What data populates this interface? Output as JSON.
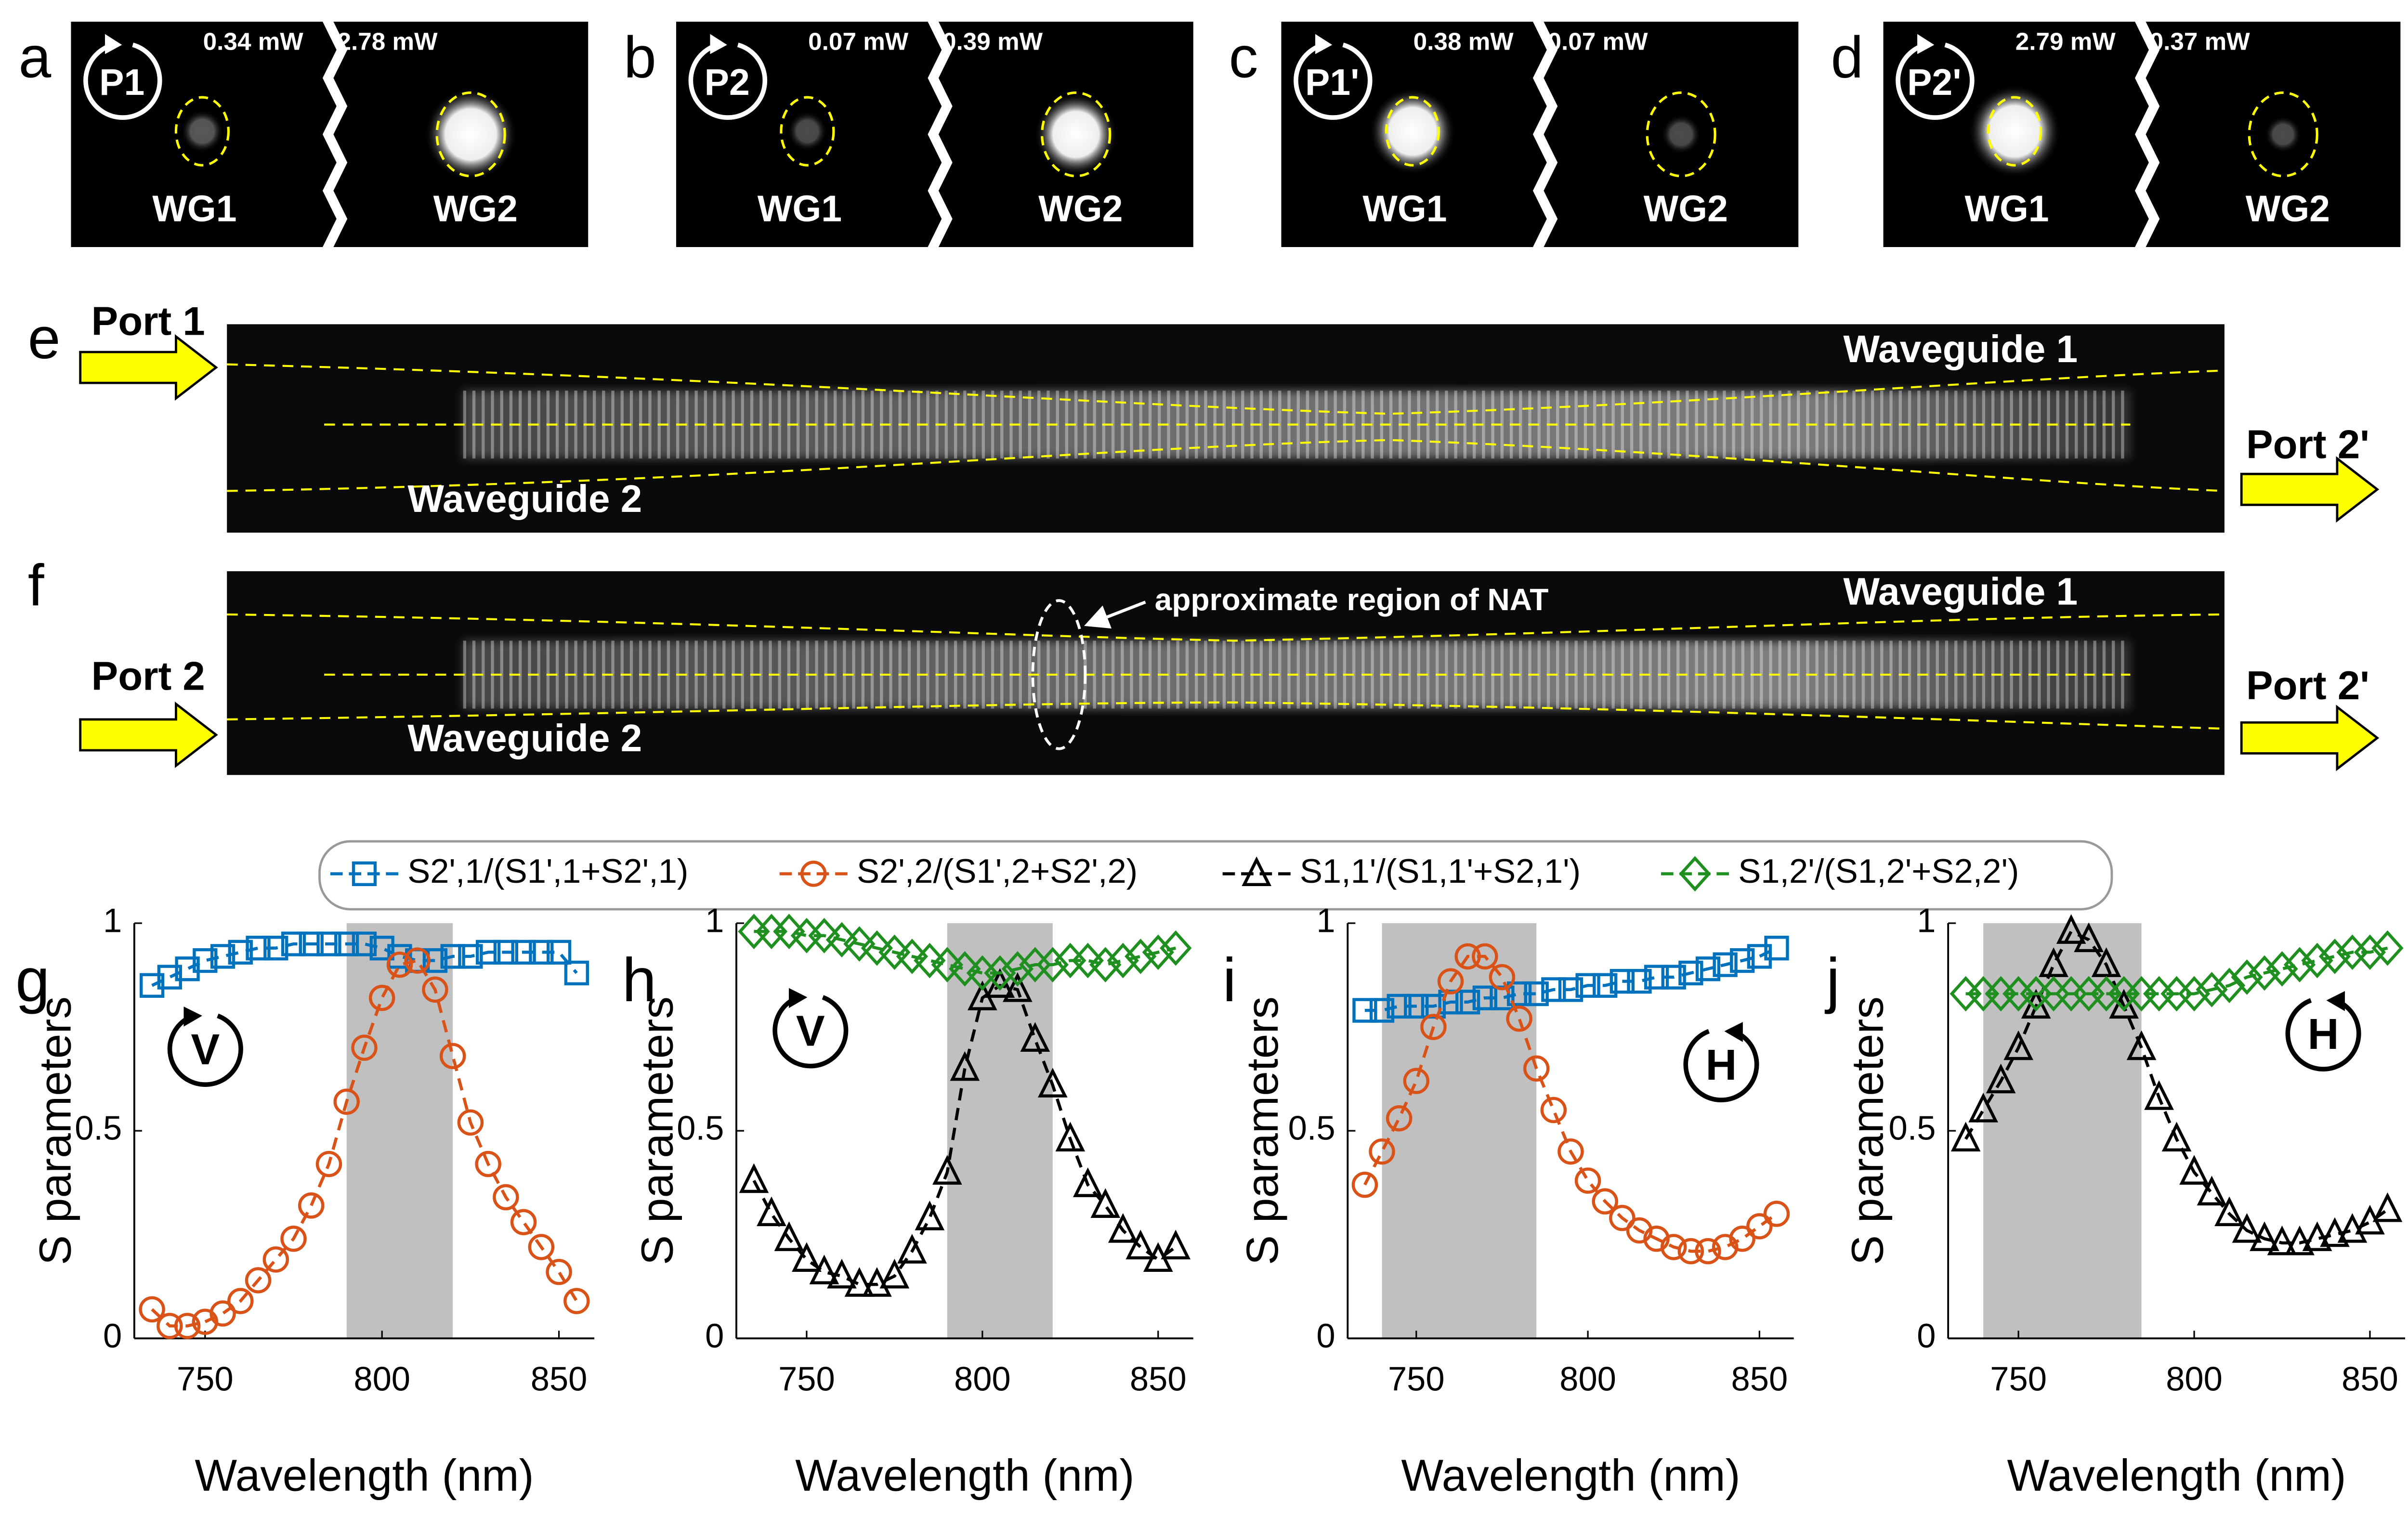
{
  "panels": [
    {
      "letter": "a",
      "port": "P1",
      "power1": "0.34 mW",
      "power2": "2.78 mW",
      "wg1": "WG1",
      "wg2": "WG2"
    },
    {
      "letter": "b",
      "port": "P2",
      "power1": "0.07 mW",
      "power2": "0.39 mW",
      "wg1": "WG1",
      "wg2": "WG2"
    },
    {
      "letter": "c",
      "port": "P1'",
      "power1": "0.38 mW",
      "power2": "0.07 mW",
      "wg1": "WG1",
      "wg2": "WG2"
    },
    {
      "letter": "d",
      "port": "P2'",
      "power1": "2.79 mW",
      "power2": "0.37 mW",
      "wg1": "WG1",
      "wg2": "WG2"
    }
  ],
  "images": [
    {
      "letter": "e",
      "in_port": "Port 1",
      "out_port": "Port 2'",
      "wg1": "Waveguide 1",
      "wg2": "Waveguide 2"
    },
    {
      "letter": "f",
      "in_port": "Port 2",
      "out_port": "Port 2'",
      "wg1": "Waveguide 1",
      "wg2": "Waveguide 2",
      "annotation": "approximate region of NAT"
    }
  ],
  "chart_data": [
    {
      "type": "line",
      "letter": "g",
      "icon": "V",
      "xlabel": "Wavelength (nm)",
      "ylabel": "S parameters",
      "x": [
        735,
        740,
        745,
        750,
        755,
        760,
        765,
        770,
        775,
        780,
        785,
        790,
        795,
        800,
        805,
        810,
        815,
        820,
        825,
        830,
        835,
        840,
        845,
        850,
        855
      ],
      "xlim": [
        730,
        860
      ],
      "xticks": [
        750,
        800,
        850
      ],
      "ylim": [
        0,
        1
      ],
      "yticks": [
        0,
        0.5,
        1
      ],
      "shade": [
        790,
        820
      ],
      "series": [
        {
          "name": "S2',1/(S1',1+S2',1)",
          "color": "#0072bd",
          "marker": "square",
          "values": [
            0.85,
            0.87,
            0.89,
            0.91,
            0.92,
            0.93,
            0.94,
            0.94,
            0.95,
            0.95,
            0.95,
            0.95,
            0.95,
            0.94,
            0.92,
            0.91,
            0.91,
            0.92,
            0.92,
            0.93,
            0.93,
            0.93,
            0.93,
            0.93,
            0.88
          ]
        },
        {
          "name": "S2',2/(S1',2+S2',2)",
          "color": "#d95319",
          "marker": "circle",
          "values": [
            0.07,
            0.03,
            0.03,
            0.04,
            0.06,
            0.09,
            0.14,
            0.19,
            0.24,
            0.32,
            0.42,
            0.57,
            0.7,
            0.82,
            0.9,
            0.91,
            0.84,
            0.68,
            0.52,
            0.42,
            0.34,
            0.28,
            0.22,
            0.16,
            0.09
          ]
        }
      ]
    },
    {
      "type": "line",
      "letter": "h",
      "icon": "V",
      "xlabel": "Wavelength (nm)",
      "ylabel": "S parameters",
      "x": [
        735,
        740,
        745,
        750,
        755,
        760,
        765,
        770,
        775,
        780,
        785,
        790,
        795,
        800,
        805,
        810,
        815,
        820,
        825,
        830,
        835,
        840,
        845,
        850,
        855
      ],
      "xlim": [
        730,
        860
      ],
      "xticks": [
        750,
        800,
        850
      ],
      "ylim": [
        0,
        1
      ],
      "yticks": [
        0,
        0.5,
        1
      ],
      "shade": [
        790,
        820
      ],
      "series": [
        {
          "name": "S1,1'/(S1,1'+S2,1')",
          "color": "#000000",
          "marker": "triangle",
          "values": [
            0.38,
            0.3,
            0.24,
            0.19,
            0.16,
            0.15,
            0.13,
            0.13,
            0.15,
            0.21,
            0.29,
            0.4,
            0.65,
            0.82,
            0.85,
            0.84,
            0.72,
            0.61,
            0.48,
            0.37,
            0.32,
            0.26,
            0.22,
            0.19,
            0.22
          ]
        },
        {
          "name": "S1,2'/(S1,2'+S2,2')",
          "color": "#1f8f1f",
          "marker": "diamond",
          "values": [
            0.98,
            0.98,
            0.98,
            0.97,
            0.97,
            0.96,
            0.95,
            0.94,
            0.93,
            0.92,
            0.91,
            0.9,
            0.89,
            0.88,
            0.88,
            0.89,
            0.9,
            0.9,
            0.91,
            0.91,
            0.9,
            0.91,
            0.92,
            0.93,
            0.94
          ]
        }
      ]
    },
    {
      "type": "line",
      "letter": "i",
      "icon": "H",
      "xlabel": "Wavelength (nm)",
      "ylabel": "S parameters",
      "x": [
        735,
        740,
        745,
        750,
        755,
        760,
        765,
        770,
        775,
        780,
        785,
        790,
        795,
        800,
        805,
        810,
        815,
        820,
        825,
        830,
        835,
        840,
        845,
        850,
        855
      ],
      "xlim": [
        730,
        860
      ],
      "xticks": [
        750,
        800,
        850
      ],
      "ylim": [
        0,
        1
      ],
      "yticks": [
        0,
        0.5,
        1
      ],
      "shade": [
        740,
        785
      ],
      "series": [
        {
          "color": "#0072bd",
          "marker": "square",
          "values": [
            0.79,
            0.79,
            0.8,
            0.8,
            0.8,
            0.81,
            0.81,
            0.82,
            0.82,
            0.83,
            0.83,
            0.84,
            0.84,
            0.85,
            0.85,
            0.86,
            0.86,
            0.87,
            0.87,
            0.88,
            0.89,
            0.9,
            0.91,
            0.92,
            0.94
          ]
        },
        {
          "color": "#d95319",
          "marker": "circle",
          "values": [
            0.37,
            0.45,
            0.53,
            0.62,
            0.75,
            0.86,
            0.92,
            0.92,
            0.87,
            0.77,
            0.65,
            0.55,
            0.45,
            0.38,
            0.33,
            0.29,
            0.26,
            0.24,
            0.22,
            0.21,
            0.21,
            0.22,
            0.24,
            0.27,
            0.3
          ]
        }
      ]
    },
    {
      "type": "line",
      "letter": "j",
      "icon": "H",
      "xlabel": "Wavelength (nm)",
      "ylabel": "S parameters",
      "x": [
        735,
        740,
        745,
        750,
        755,
        760,
        765,
        770,
        775,
        780,
        785,
        790,
        795,
        800,
        805,
        810,
        815,
        820,
        825,
        830,
        835,
        840,
        845,
        850,
        855
      ],
      "xlim": [
        730,
        860
      ],
      "xticks": [
        750,
        800,
        850
      ],
      "ylim": [
        0,
        1
      ],
      "yticks": [
        0,
        0.5,
        1
      ],
      "shade": [
        740,
        785
      ],
      "series": [
        {
          "color": "#000000",
          "marker": "triangle",
          "values": [
            0.48,
            0.55,
            0.62,
            0.7,
            0.8,
            0.9,
            0.98,
            0.96,
            0.9,
            0.8,
            0.7,
            0.58,
            0.48,
            0.4,
            0.35,
            0.3,
            0.26,
            0.24,
            0.23,
            0.23,
            0.24,
            0.25,
            0.26,
            0.28,
            0.31
          ]
        },
        {
          "color": "#1f8f1f",
          "marker": "diamond",
          "values": [
            0.83,
            0.83,
            0.83,
            0.83,
            0.83,
            0.83,
            0.83,
            0.83,
            0.83,
            0.83,
            0.83,
            0.83,
            0.83,
            0.83,
            0.84,
            0.85,
            0.87,
            0.88,
            0.89,
            0.9,
            0.91,
            0.92,
            0.93,
            0.93,
            0.94
          ]
        }
      ]
    }
  ]
}
